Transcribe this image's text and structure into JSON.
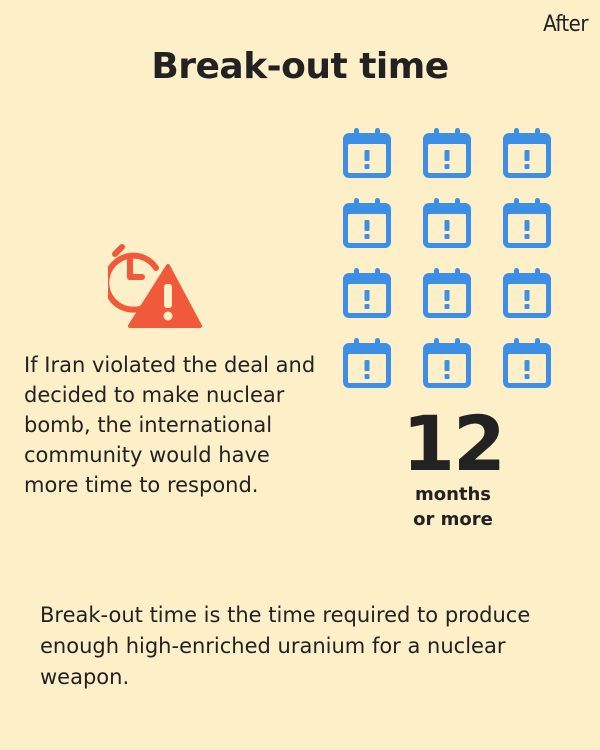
{
  "corner_label": "After",
  "title": "Break-out time",
  "explanation": "If Iran violated the deal and decided to make nuclear bomb, the international community would have more time to respond.",
  "calendar_icon_count": 12,
  "calendar_color": "#3d8fe6",
  "alert_color": "#f05a3a",
  "big_number": "12",
  "unit_line1": "months",
  "unit_line2": "or more",
  "definition": "Break-out time is the time required to produce enough high-enriched uranium for a nuclear weapon.",
  "icons": {
    "alert": "clock-warning-icon",
    "calendar": "calendar-exclamation-icon"
  }
}
